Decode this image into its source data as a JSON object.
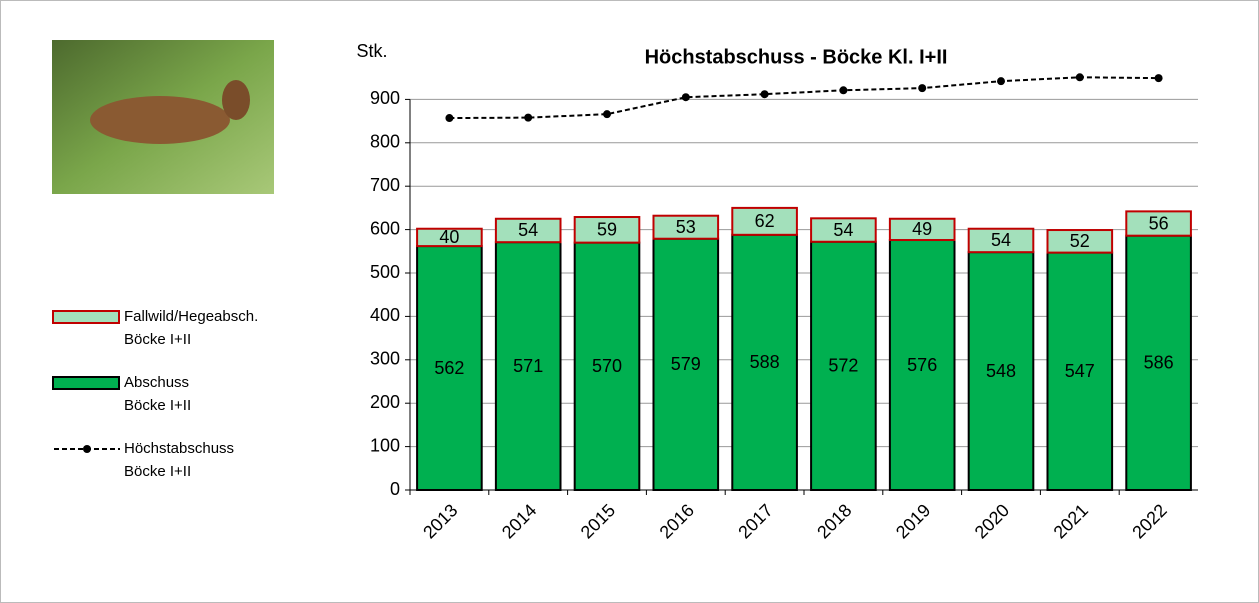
{
  "chart_data": {
    "type": "bar-line",
    "title": "Höchstabschuss - Böcke Kl. I+II",
    "y_label": "Stk.",
    "categories": [
      "2013",
      "2014",
      "2015",
      "2016",
      "2017",
      "2018",
      "2019",
      "2020",
      "2021",
      "2022"
    ],
    "series": [
      {
        "name": "Fallwild/Hegeabsch.\nBöcke I+II",
        "color": "#a3e0bb",
        "stroke": "#c00000",
        "kind": "bar",
        "values": [
          40,
          54,
          59,
          53,
          62,
          54,
          49,
          54,
          52,
          56
        ]
      },
      {
        "name": "Abschuss\nBöcke I+II",
        "color": "#00b050",
        "stroke": "#000000",
        "kind": "bar",
        "values": [
          562,
          571,
          570,
          579,
          588,
          572,
          576,
          548,
          547,
          586
        ]
      },
      {
        "name": "Höchstabschuss\nBöcke I+II",
        "color": "#000000",
        "kind": "line",
        "values": [
          857,
          858,
          866,
          905,
          912,
          921,
          926,
          942,
          951,
          949
        ]
      }
    ],
    "ylim": [
      0,
      1000
    ],
    "yticks": [
      0,
      100,
      200,
      300,
      400,
      500,
      600,
      700,
      800,
      900
    ],
    "grid": true
  }
}
